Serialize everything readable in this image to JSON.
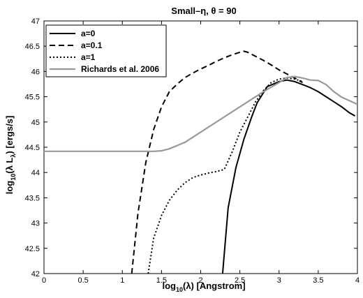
{
  "chart_data": {
    "type": "line",
    "title": "Small–η, θ = 90",
    "xlabel": "log10(λ) [Angstrom]",
    "xlabel_parts": {
      "pre": "log",
      "sub": "10",
      "post": "(λ) [Angstrom]"
    },
    "ylabel": "log10(λ Lλ) [ergs/s]",
    "ylabel_parts": {
      "pre": "log",
      "sub1": "10",
      "mid": "(λ L",
      "sub2": "λ",
      "post": ") [ergs/s]"
    },
    "xlim": [
      0,
      4
    ],
    "ylim": [
      42,
      47
    ],
    "xticks": [
      0,
      0.5,
      1,
      1.5,
      2,
      2.5,
      3,
      3.5,
      4
    ],
    "xtick_labels": [
      "0",
      "0.5",
      "1",
      "1.5",
      "2",
      "2.5",
      "3",
      "3.5",
      "4"
    ],
    "yticks": [
      42,
      42.5,
      43,
      43.5,
      44,
      44.5,
      45,
      45.5,
      46,
      46.5,
      47
    ],
    "ytick_labels": [
      "42",
      "42.5",
      "43",
      "43.5",
      "44",
      "44.5",
      "45",
      "45.5",
      "46",
      "46.5",
      "47"
    ],
    "grid": false,
    "legend_position": "top-left",
    "series": [
      {
        "name": "a=0",
        "style": "solid",
        "color": "#000000",
        "x": [
          2.28,
          2.35,
          2.45,
          2.55,
          2.65,
          2.72,
          2.85,
          3.0,
          3.1,
          3.2,
          3.3,
          3.4,
          3.5,
          3.6,
          3.7,
          3.8,
          3.9,
          3.97
        ],
        "y": [
          42.0,
          43.3,
          44.1,
          44.65,
          45.1,
          45.38,
          45.7,
          45.8,
          45.83,
          45.8,
          45.74,
          45.68,
          45.6,
          45.5,
          45.4,
          45.3,
          45.18,
          45.12
        ]
      },
      {
        "name": "a=0.1",
        "style": "dashed",
        "color": "#000000",
        "x": [
          1.12,
          1.2,
          1.3,
          1.4,
          1.5,
          1.6,
          1.7,
          1.8,
          1.9,
          2.0,
          2.1,
          2.2,
          2.3,
          2.4,
          2.5,
          2.55,
          2.6,
          2.7,
          2.8,
          2.9,
          3.0,
          3.1,
          3.2,
          3.3
        ],
        "y": [
          42.0,
          43.2,
          44.2,
          44.85,
          45.3,
          45.6,
          45.75,
          45.88,
          45.97,
          46.05,
          46.12,
          46.2,
          46.27,
          46.33,
          46.38,
          46.4,
          46.38,
          46.3,
          46.22,
          46.13,
          46.03,
          45.95,
          45.87,
          45.78
        ]
      },
      {
        "name": "a=1",
        "style": "dotted",
        "color": "#000000",
        "x": [
          1.33,
          1.4,
          1.5,
          1.6,
          1.7,
          1.8,
          1.9,
          2.0,
          2.1,
          2.2,
          2.3,
          2.4,
          2.5,
          2.6,
          2.7,
          2.8,
          2.9,
          3.0,
          3.1,
          3.2,
          3.3
        ],
        "y": [
          42.0,
          42.7,
          43.15,
          43.45,
          43.65,
          43.8,
          43.9,
          43.95,
          43.99,
          44.02,
          44.06,
          44.4,
          44.8,
          45.1,
          45.4,
          45.62,
          45.78,
          45.85,
          45.87,
          45.85,
          45.8
        ]
      },
      {
        "name": "Richards et al. 2006",
        "style": "solid",
        "color": "#999999",
        "x": [
          0.0,
          0.5,
          1.0,
          1.4,
          1.5,
          1.6,
          1.8,
          2.0,
          2.2,
          2.4,
          2.6,
          2.8,
          3.0,
          3.1,
          3.2,
          3.3,
          3.4,
          3.5,
          3.6,
          3.7,
          3.8,
          3.9,
          4.0
        ],
        "y": [
          44.42,
          44.42,
          44.42,
          44.42,
          44.43,
          44.47,
          44.6,
          44.8,
          45.0,
          45.2,
          45.4,
          45.6,
          45.78,
          45.88,
          45.9,
          45.87,
          45.83,
          45.82,
          45.74,
          45.6,
          45.49,
          45.42,
          45.35
        ]
      }
    ]
  }
}
